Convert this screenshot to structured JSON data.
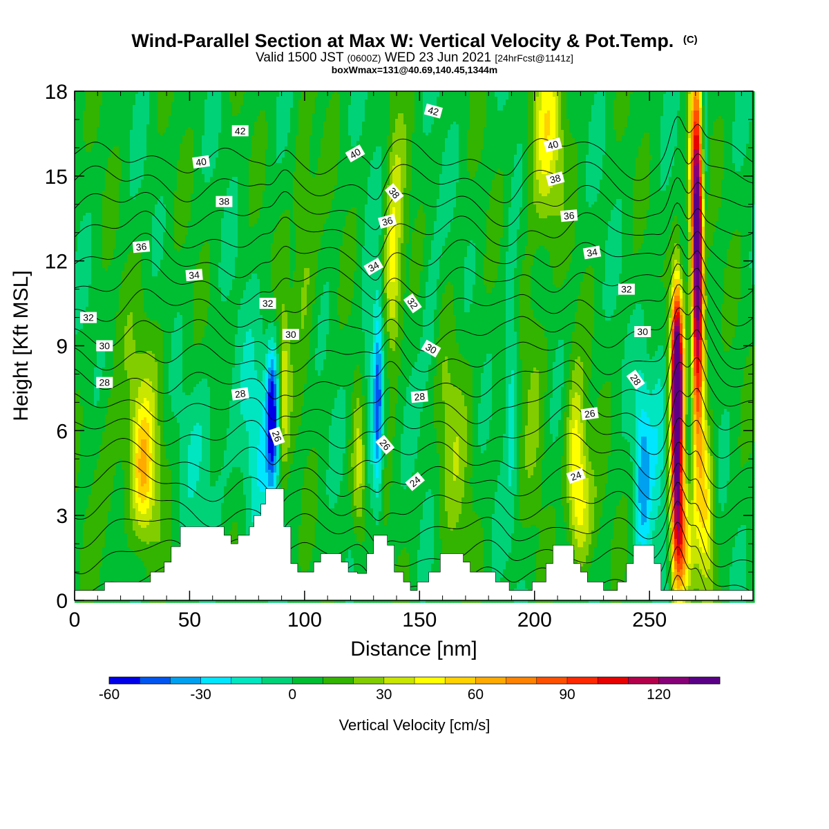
{
  "header": {
    "title": "Wind-Parallel Section at Max W: Vertical Velocity & Pot.Temp.",
    "copyright": "(C)",
    "valid_prefix": "Valid 1500 JST",
    "valid_utc": "(0600Z)",
    "valid_date": "WED 23 Jun 2021",
    "forecast_info": "[24hrFcst@1141z]",
    "box_info": "boxWmax=131@40.69,140.45,1344m"
  },
  "chart_data": {
    "type": "heatmap",
    "title": "Wind-Parallel Section at Max W: Vertical Velocity & Pot.Temp.",
    "xlabel": "Distance [nm]",
    "ylabel": "Height [Kft MSL]",
    "xlim": [
      0,
      295
    ],
    "ylim": [
      0,
      18
    ],
    "x_ticks": [
      0,
      50,
      100,
      150,
      200,
      250
    ],
    "y_ticks": [
      0,
      3,
      6,
      9,
      12,
      15,
      18
    ],
    "colorbar": {
      "label": "Vertical Velocity [cm/s]",
      "ticks": [
        -60,
        -30,
        0,
        30,
        60,
        90,
        120
      ],
      "levels": [
        -60,
        -50,
        -40,
        -30,
        -20,
        -10,
        0,
        10,
        20,
        30,
        40,
        50,
        60,
        70,
        80,
        90,
        100,
        110,
        120,
        130,
        140
      ],
      "colors": [
        "#0000e8",
        "#0055f0",
        "#00a0f0",
        "#00e6ff",
        "#00e6c0",
        "#00d278",
        "#00be32",
        "#32b400",
        "#82cd00",
        "#c8e600",
        "#ffff00",
        "#ffd200",
        "#ffaa00",
        "#ff8200",
        "#ff5000",
        "#ff2800",
        "#e80000",
        "#b4004b",
        "#870078",
        "#5a0087"
      ]
    },
    "background_w": 5,
    "w_features": [
      {
        "x": 30,
        "z": 4.5,
        "w": 38,
        "sx": 3.5,
        "sz": 1.6
      },
      {
        "x": 31,
        "z": 6.5,
        "w": 18,
        "sx": 7,
        "sz": 3
      },
      {
        "x": 15,
        "z": 4.5,
        "w": 12,
        "sx": 5,
        "sz": 2.5
      },
      {
        "x": 57,
        "z": 5.5,
        "w": -12,
        "sx": 9,
        "sz": 2
      },
      {
        "x": 80,
        "z": 5.5,
        "w": -18,
        "sx": 6,
        "sz": 3
      },
      {
        "x": 86,
        "z": 6.5,
        "w": -58,
        "sx": 1.8,
        "sz": 1.8
      },
      {
        "x": 91,
        "z": 7.5,
        "w": 30,
        "sx": 1.8,
        "sz": 2.2
      },
      {
        "x": 100,
        "z": 12.5,
        "w": 20,
        "sx": 4,
        "sz": 3
      },
      {
        "x": 124,
        "z": 4.5,
        "w": 35,
        "sx": 2.5,
        "sz": 2
      },
      {
        "x": 128,
        "z": 7,
        "w": -22,
        "sx": 3,
        "sz": 3
      },
      {
        "x": 132,
        "z": 7,
        "w": -45,
        "sx": 1.5,
        "sz": 2.5
      },
      {
        "x": 138,
        "z": 11,
        "w": 35,
        "sx": 2.5,
        "sz": 2.2
      },
      {
        "x": 140,
        "z": 14,
        "w": 20,
        "sx": 3,
        "sz": 2.5
      },
      {
        "x": 155,
        "z": 9.5,
        "w": -14,
        "sx": 3,
        "sz": 3
      },
      {
        "x": 165,
        "z": 6,
        "w": 18,
        "sx": 6,
        "sz": 3
      },
      {
        "x": 190,
        "z": 8,
        "w": -25,
        "sx": 2,
        "sz": 3
      },
      {
        "x": 200,
        "z": 8,
        "w": 15,
        "sx": 4,
        "sz": 3
      },
      {
        "x": 205,
        "z": 16.5,
        "w": 38,
        "sx": 5,
        "sz": 2.5
      },
      {
        "x": 218,
        "z": 5,
        "w": 42,
        "sx": 3,
        "sz": 2
      },
      {
        "x": 221,
        "z": 3,
        "w": 25,
        "sx": 4,
        "sz": 1.5
      },
      {
        "x": 247,
        "z": 4.5,
        "w": -35,
        "sx": 2.5,
        "sz": 2.5
      },
      {
        "x": 254,
        "z": 6,
        "w": -20,
        "sx": 3,
        "sz": 3
      },
      {
        "x": 262,
        "z": 5.5,
        "w": 120,
        "sx": 1.8,
        "sz": 3
      },
      {
        "x": 262,
        "z": 8.5,
        "w": 95,
        "sx": 1.8,
        "sz": 2
      },
      {
        "x": 268,
        "z": 9,
        "w": -25,
        "sx": 1.2,
        "sz": 4
      },
      {
        "x": 271,
        "z": 10.5,
        "w": 125,
        "sx": 2.2,
        "sz": 4
      },
      {
        "x": 270,
        "z": 15,
        "w": 70,
        "sx": 2,
        "sz": 2.5
      },
      {
        "x": 274,
        "z": 15,
        "w": -35,
        "sx": 1.2,
        "sz": 3.5
      },
      {
        "x": 264,
        "z": 2,
        "w": 55,
        "sx": 3,
        "sz": 1.5
      },
      {
        "x": 275,
        "z": 3,
        "w": 40,
        "sx": 2.5,
        "sz": 2
      }
    ],
    "terrain": [
      [
        0,
        0.35
      ],
      [
        13,
        0.35
      ],
      [
        13,
        0.65
      ],
      [
        33,
        0.65
      ],
      [
        33,
        1.0
      ],
      [
        39,
        1.0
      ],
      [
        39,
        1.35
      ],
      [
        42,
        1.35
      ],
      [
        42,
        1.9
      ],
      [
        46,
        1.9
      ],
      [
        46,
        2.6
      ],
      [
        65,
        2.6
      ],
      [
        65,
        2.3
      ],
      [
        68,
        2.3
      ],
      [
        68,
        2.0
      ],
      [
        71,
        2.0
      ],
      [
        71,
        2.3
      ],
      [
        76,
        2.3
      ],
      [
        76,
        2.6
      ],
      [
        78,
        2.6
      ],
      [
        78,
        3.0
      ],
      [
        81,
        3.0
      ],
      [
        81,
        3.4
      ],
      [
        83,
        3.4
      ],
      [
        83,
        3.95
      ],
      [
        91,
        3.95
      ],
      [
        91,
        2.6
      ],
      [
        94,
        2.6
      ],
      [
        94,
        1.3
      ],
      [
        97,
        1.3
      ],
      [
        97,
        1.0
      ],
      [
        104,
        1.0
      ],
      [
        104,
        1.35
      ],
      [
        107,
        1.35
      ],
      [
        107,
        1.65
      ],
      [
        116,
        1.65
      ],
      [
        116,
        1.35
      ],
      [
        119,
        1.35
      ],
      [
        119,
        1.0
      ],
      [
        123,
        1.0
      ],
      [
        123,
        0.95
      ],
      [
        127,
        0.95
      ],
      [
        127,
        1.65
      ],
      [
        130,
        1.65
      ],
      [
        130,
        2.3
      ],
      [
        136,
        2.3
      ],
      [
        136,
        1.95
      ],
      [
        139,
        1.95
      ],
      [
        139,
        1.0
      ],
      [
        143,
        1.0
      ],
      [
        143,
        0.65
      ],
      [
        146,
        0.65
      ],
      [
        146,
        0.35
      ],
      [
        149,
        0.35
      ],
      [
        149,
        0.65
      ],
      [
        154,
        0.65
      ],
      [
        154,
        1.0
      ],
      [
        159,
        1.0
      ],
      [
        159,
        1.65
      ],
      [
        169,
        1.65
      ],
      [
        169,
        1.35
      ],
      [
        172,
        1.35
      ],
      [
        172,
        1.0
      ],
      [
        183,
        1.0
      ],
      [
        183,
        0.65
      ],
      [
        189,
        0.65
      ],
      [
        189,
        0.35
      ],
      [
        199,
        0.35
      ],
      [
        199,
        0.65
      ],
      [
        205,
        0.65
      ],
      [
        205,
        1.3
      ],
      [
        208,
        1.3
      ],
      [
        208,
        1.95
      ],
      [
        217,
        1.95
      ],
      [
        217,
        1.3
      ],
      [
        220,
        1.3
      ],
      [
        220,
        1.0
      ],
      [
        223,
        1.0
      ],
      [
        223,
        0.65
      ],
      [
        230,
        0.65
      ],
      [
        230,
        0.35
      ],
      [
        236,
        0.35
      ],
      [
        236,
        0.65
      ],
      [
        240,
        0.65
      ],
      [
        240,
        1.3
      ],
      [
        243,
        1.3
      ],
      [
        243,
        1.95
      ],
      [
        252,
        1.95
      ],
      [
        252,
        1.3
      ],
      [
        255,
        1.3
      ],
      [
        255,
        0.35
      ],
      [
        295,
        0.35
      ]
    ],
    "theta_levels": [
      24,
      25,
      26,
      27,
      28,
      29,
      30,
      31,
      32,
      33,
      34,
      35,
      36,
      37,
      38,
      39,
      40,
      41,
      42,
      43,
      44
    ],
    "contour_labels": [
      {
        "x": 72,
        "z": 7.3,
        "v": "28",
        "rot": -8
      },
      {
        "x": 13,
        "z": 7.7,
        "v": "28",
        "rot": 0
      },
      {
        "x": 13,
        "z": 9.0,
        "v": "30",
        "rot": 0
      },
      {
        "x": 6,
        "z": 10.0,
        "v": "32",
        "rot": 0
      },
      {
        "x": 52,
        "z": 11.5,
        "v": "34",
        "rot": -5
      },
      {
        "x": 29,
        "z": 12.5,
        "v": "36",
        "rot": -5
      },
      {
        "x": 65,
        "z": 14.1,
        "v": "38",
        "rot": 0
      },
      {
        "x": 55,
        "z": 15.5,
        "v": "40",
        "rot": -8
      },
      {
        "x": 72,
        "z": 16.6,
        "v": "42",
        "rot": 0
      },
      {
        "x": 84,
        "z": 10.5,
        "v": "32",
        "rot": 0
      },
      {
        "x": 94,
        "z": 9.4,
        "v": "30",
        "rot": 0
      },
      {
        "x": 88,
        "z": 5.8,
        "v": "26",
        "rot": 70
      },
      {
        "x": 130,
        "z": 11.8,
        "v": "34",
        "rot": -30
      },
      {
        "x": 136,
        "z": 13.4,
        "v": "36",
        "rot": -15
      },
      {
        "x": 139,
        "z": 14.4,
        "v": "38",
        "rot": 50
      },
      {
        "x": 122,
        "z": 15.8,
        "v": "40",
        "rot": -30
      },
      {
        "x": 156,
        "z": 17.3,
        "v": "42",
        "rot": 15
      },
      {
        "x": 147,
        "z": 10.5,
        "v": "32",
        "rot": 55
      },
      {
        "x": 155,
        "z": 8.9,
        "v": "30",
        "rot": 30
      },
      {
        "x": 150,
        "z": 7.2,
        "v": "28",
        "rot": -5
      },
      {
        "x": 135,
        "z": 5.5,
        "v": "26",
        "rot": 50
      },
      {
        "x": 148,
        "z": 4.2,
        "v": "24",
        "rot": -40
      },
      {
        "x": 208,
        "z": 16.1,
        "v": "40",
        "rot": -15
      },
      {
        "x": 209,
        "z": 14.9,
        "v": "38",
        "rot": -15
      },
      {
        "x": 215,
        "z": 13.6,
        "v": "36",
        "rot": -5
      },
      {
        "x": 225,
        "z": 12.3,
        "v": "34",
        "rot": -10
      },
      {
        "x": 240,
        "z": 11.0,
        "v": "32",
        "rot": 0
      },
      {
        "x": 247,
        "z": 9.5,
        "v": "30",
        "rot": 0
      },
      {
        "x": 244,
        "z": 7.8,
        "v": "28",
        "rot": 55
      },
      {
        "x": 224,
        "z": 6.6,
        "v": "26",
        "rot": -8
      },
      {
        "x": 218,
        "z": 4.4,
        "v": "24",
        "rot": -20
      }
    ]
  }
}
